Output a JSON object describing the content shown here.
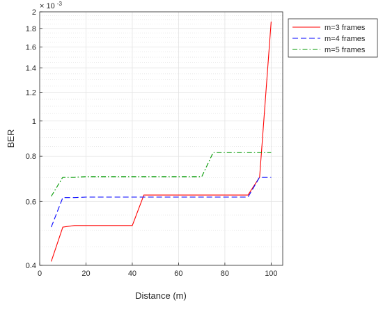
{
  "chart_data": {
    "type": "line",
    "title": "",
    "xlabel": "Distance (m)",
    "ylabel": "BER",
    "y_exponent_label": "× 10",
    "y_exponent_power": "-3",
    "y_scale": "log",
    "y_multiplier": 0.001,
    "xlim": [
      0,
      105
    ],
    "ylim": [
      0.4,
      2.0
    ],
    "xticks": [
      0,
      20,
      40,
      60,
      80,
      100
    ],
    "yticks": [
      0.4,
      0.6,
      0.8,
      1.0,
      1.2,
      1.4,
      1.6,
      1.8,
      2.0
    ],
    "ytick_labels": [
      "0.4",
      "0.6",
      "0.8",
      "1",
      "1.2",
      "1.4",
      "1.6",
      "1.8",
      "2"
    ],
    "grid": true,
    "legend_position": "outside-top-right",
    "series": [
      {
        "name": "m=3 frames",
        "color": "#ff0000",
        "style": "solid",
        "x": [
          5,
          10,
          15,
          20,
          40,
          45,
          50,
          90,
          95,
          100
        ],
        "y": [
          0.41,
          0.51,
          0.515,
          0.515,
          0.515,
          0.625,
          0.625,
          0.625,
          0.7,
          1.88
        ]
      },
      {
        "name": "m=4 frames",
        "color": "#0000ff",
        "style": "dashed",
        "x": [
          5,
          10,
          15,
          20,
          40,
          45,
          50,
          90,
          95,
          100
        ],
        "y": [
          0.51,
          0.615,
          0.615,
          0.617,
          0.617,
          0.617,
          0.617,
          0.617,
          0.7,
          0.7
        ]
      },
      {
        "name": "m=5 frames",
        "color": "#009900",
        "style": "dashdot",
        "x": [
          5,
          10,
          15,
          20,
          40,
          45,
          50,
          70,
          75,
          80,
          100
        ],
        "y": [
          0.62,
          0.7,
          0.7,
          0.702,
          0.702,
          0.702,
          0.702,
          0.702,
          0.82,
          0.82,
          0.82
        ]
      }
    ]
  }
}
